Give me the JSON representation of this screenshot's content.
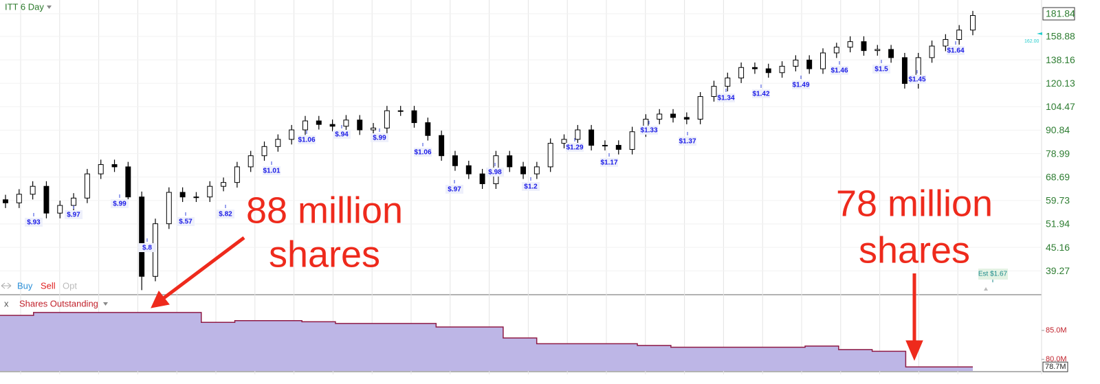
{
  "ui": {
    "symbol_menu": "ITT 6 Day",
    "trade_buttons": [
      "Buy",
      "Sell",
      "Opt"
    ],
    "close_panel": "x",
    "panel_menu": "Shares Outstanding",
    "side_marker": "162.00",
    "estimate": "Est $1.67"
  },
  "chart_data": [
    {
      "type": "candlestick",
      "log_scale": true,
      "grid": true,
      "up_color": "#ffffff",
      "down_color": "#000000",
      "ylim": [
        34.2,
        197.4
      ],
      "yticks": [
        181.84,
        158.88,
        138.16,
        120.13,
        104.47,
        90.84,
        78.99,
        68.69,
        59.73,
        51.94,
        45.16,
        39.27
      ],
      "open": [
        60,
        58.9,
        62,
        65,
        55.4,
        58,
        60.6,
        70,
        74,
        73,
        61,
        38,
        52,
        62.7,
        61,
        61,
        65,
        66.5,
        73,
        78,
        82.4,
        86,
        91,
        96,
        94,
        93,
        96.5,
        91,
        92,
        102,
        102,
        95,
        88,
        78,
        73.5,
        70,
        66,
        78,
        73,
        70,
        73,
        84,
        86,
        91,
        83,
        83,
        81,
        90,
        97,
        100,
        98,
        97,
        111,
        118,
        124,
        132,
        131,
        128,
        133,
        138,
        131,
        144,
        149,
        154,
        146,
        147,
        140,
        120,
        140,
        150,
        156,
        165
      ],
      "high": [
        61.8,
        63.9,
        67,
        67,
        59.7,
        62.4,
        72.1,
        76.2,
        76.2,
        75.2,
        63,
        53.6,
        64.6,
        64.6,
        62.8,
        67,
        68.5,
        75.2,
        80.3,
        84.9,
        88.6,
        93.7,
        98.9,
        98.9,
        96.8,
        99.4,
        99.4,
        94.8,
        105,
        105,
        105,
        97.9,
        90.6,
        80.3,
        75.7,
        72.1,
        80.3,
        80.3,
        75.2,
        75.2,
        86.5,
        88.6,
        93.7,
        93.7,
        85.5,
        85.5,
        92.7,
        99.9,
        103,
        103,
        101,
        114,
        122,
        128,
        136,
        136,
        135,
        137,
        142,
        142,
        148,
        153,
        159,
        159,
        151,
        151,
        144,
        144,
        155,
        161,
        170,
        185
      ],
      "low": [
        57.1,
        57.1,
        60.1,
        53.7,
        53.7,
        56.3,
        58.8,
        67.9,
        70.8,
        59.2,
        35,
        36.9,
        50.4,
        59.2,
        59.2,
        59.2,
        63.1,
        64.5,
        70.8,
        75.7,
        79.9,
        83.4,
        88.3,
        91.2,
        90.2,
        90.2,
        88.3,
        88.3,
        89.2,
        98.9,
        92.2,
        85.4,
        75.7,
        71.3,
        67.9,
        64,
        64,
        70.8,
        67.9,
        67.9,
        70.8,
        81.5,
        83.4,
        80.5,
        80.5,
        78.6,
        78.6,
        87.3,
        94.1,
        95.1,
        94.1,
        94.1,
        107.7,
        114.5,
        120.3,
        127.1,
        124.2,
        124.2,
        129,
        127.1,
        127.1,
        139.7,
        144.5,
        141.6,
        141.6,
        135.8,
        116.4,
        116.4,
        135.8,
        145.5,
        151.3,
        160
      ],
      "close": [
        58.9,
        62,
        65,
        55.4,
        58,
        60.6,
        70,
        74,
        73,
        61,
        38,
        52,
        62.7,
        61,
        61,
        65,
        66.5,
        73,
        78,
        82.4,
        86,
        91,
        96,
        94,
        93,
        96.5,
        91,
        92,
        102,
        102,
        95,
        88,
        78,
        73.5,
        70,
        66,
        78,
        73,
        70,
        73,
        84,
        86,
        91,
        83,
        83,
        81,
        90,
        97,
        100,
        98,
        97,
        111,
        118,
        124,
        132,
        131,
        128,
        133,
        138,
        131,
        144,
        149,
        154,
        146,
        147,
        140,
        120,
        140,
        150,
        156,
        165,
        180
      ],
      "dividend_labels": [
        "$.93",
        "$.97",
        "$.99",
        "$.8",
        "$.57",
        "$.82",
        "$1.01",
        "$1.06",
        "$.94",
        "$.99",
        "$1.06",
        "$.97",
        "$.98",
        "$1.2",
        "$1.29",
        "$1.17",
        "$1.33",
        "$1.37",
        "$1.34",
        "$1.42",
        "$1.49",
        "$1.46",
        "$1.5",
        "$1.45",
        "$1.64"
      ],
      "annotations": [
        [
          "88 million",
          "shares"
        ],
        [
          "78 million",
          "shares"
        ]
      ]
    },
    {
      "type": "area",
      "color": "#bdb6e6",
      "line_color": "#8e1a45",
      "ylim": [
        78.0,
        90.7
      ],
      "yticks": [
        {
          "value": 85,
          "label": "85.0M"
        },
        {
          "value": 80,
          "label": "80.0M"
        }
      ],
      "values": [
        87.6,
        88.1,
        88.1,
        88.1,
        88.1,
        88.1,
        86.4,
        86.7,
        86.7,
        86.5,
        86.2,
        86.2,
        86.2,
        85.6,
        85.6,
        83.7,
        82.7,
        82.7,
        82.7,
        82.4,
        82.1,
        82.1,
        82.1,
        82.1,
        82.3,
        81.7,
        81.4,
        78.7,
        78.7,
        78.7
      ],
      "last_label": {
        "value": 78.7,
        "label": "78.7M"
      }
    }
  ]
}
